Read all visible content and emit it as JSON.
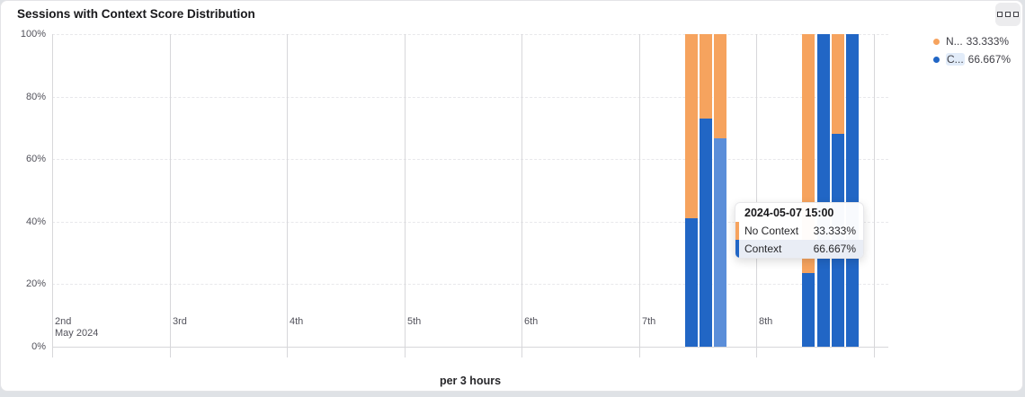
{
  "card": {
    "title": "Sessions with Context Score Distribution"
  },
  "legend": {
    "items": [
      {
        "name": "N...",
        "value": "33.333%",
        "color": "#f6a35e",
        "highlighted": false
      },
      {
        "name": "C...",
        "value": "66.667%",
        "color": "#2166c5",
        "highlighted": true
      }
    ]
  },
  "tooltip": {
    "title": "2024-05-07 15:00",
    "rows": [
      {
        "label": "No Context",
        "value": "33.333%",
        "color": "#f6a35e",
        "highlighted": false
      },
      {
        "label": "Context",
        "value": "66.667%",
        "color": "#2166c5",
        "highlighted": true
      }
    ]
  },
  "chart_data": {
    "type": "bar",
    "stacked": true,
    "title": "Sessions with Context Score Distribution",
    "xlabel": "per 3 hours",
    "ylabel": "",
    "ylim": [
      0,
      100
    ],
    "y_ticks": [
      "100%",
      "80%",
      "60%",
      "40%",
      "20%",
      "0%"
    ],
    "x_ticks": [
      "2nd",
      "3rd",
      "4th",
      "5th",
      "6th",
      "7th",
      "8th"
    ],
    "x_axis_secondary_label": "May 2024",
    "grid": {
      "horizontal": "dashed",
      "vertical": "solid"
    },
    "legend_position": "top-right",
    "x": [
      "2024-05-07 09:00",
      "2024-05-07 12:00",
      "2024-05-07 15:00",
      "2024-05-08 09:00",
      "2024-05-08 12:00",
      "2024-05-08 15:00",
      "2024-05-08 18:00"
    ],
    "series": [
      {
        "name": "No Context",
        "color": "#f6a35e",
        "values": [
          59,
          27,
          33.333,
          76.5,
          0,
          32,
          0
        ]
      },
      {
        "name": "Context",
        "color": "#2166c5",
        "values": [
          41,
          73,
          66.667,
          23.5,
          100,
          68,
          100
        ]
      }
    ],
    "hovered_index": 2,
    "hover_color": "#5b8ed9"
  }
}
